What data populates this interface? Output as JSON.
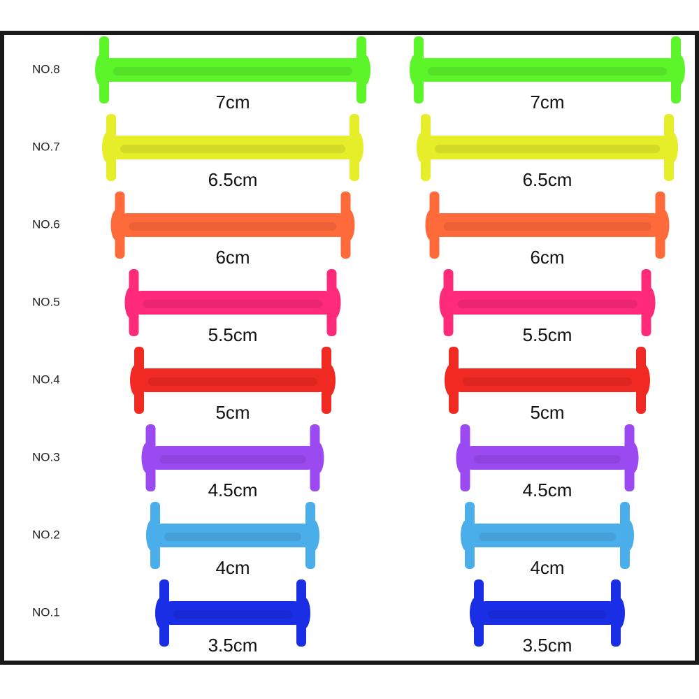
{
  "rows": [
    {
      "label": "NO.8",
      "size": "7cm",
      "color": "#5cf52a"
    },
    {
      "label": "NO.7",
      "size": "6.5cm",
      "color": "#e6ee2a"
    },
    {
      "label": "NO.6",
      "size": "6cm",
      "color": "#ff6a3a"
    },
    {
      "label": "NO.5",
      "size": "5.5cm",
      "color": "#ff2a7a"
    },
    {
      "label": "NO.4",
      "size": "5cm",
      "color": "#f02a22"
    },
    {
      "label": "NO.3",
      "size": "4.5cm",
      "color": "#9a4af0"
    },
    {
      "label": "NO.2",
      "size": "4cm",
      "color": "#4aaeea"
    },
    {
      "label": "NO.1",
      "size": "3.5cm",
      "color": "#1a2ee6"
    }
  ]
}
